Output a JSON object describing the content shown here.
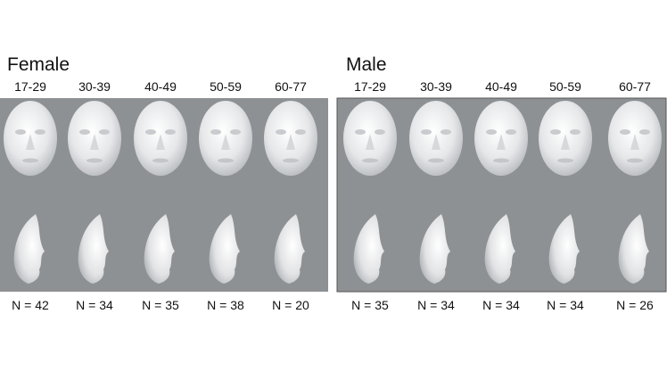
{
  "panels": [
    {
      "title": "Female",
      "groups": [
        "17-29",
        "30-39",
        "40-49",
        "50-59",
        "60-77"
      ],
      "counts": [
        "N = 42",
        "N = 34",
        "N = 35",
        "N = 38",
        "N = 20"
      ]
    },
    {
      "title": "Male",
      "groups": [
        "17-29",
        "30-39",
        "40-49",
        "50-59",
        "60-77"
      ],
      "counts": [
        "N = 35",
        "N = 34",
        "N = 34",
        "N = 34",
        "N = 26"
      ]
    }
  ]
}
